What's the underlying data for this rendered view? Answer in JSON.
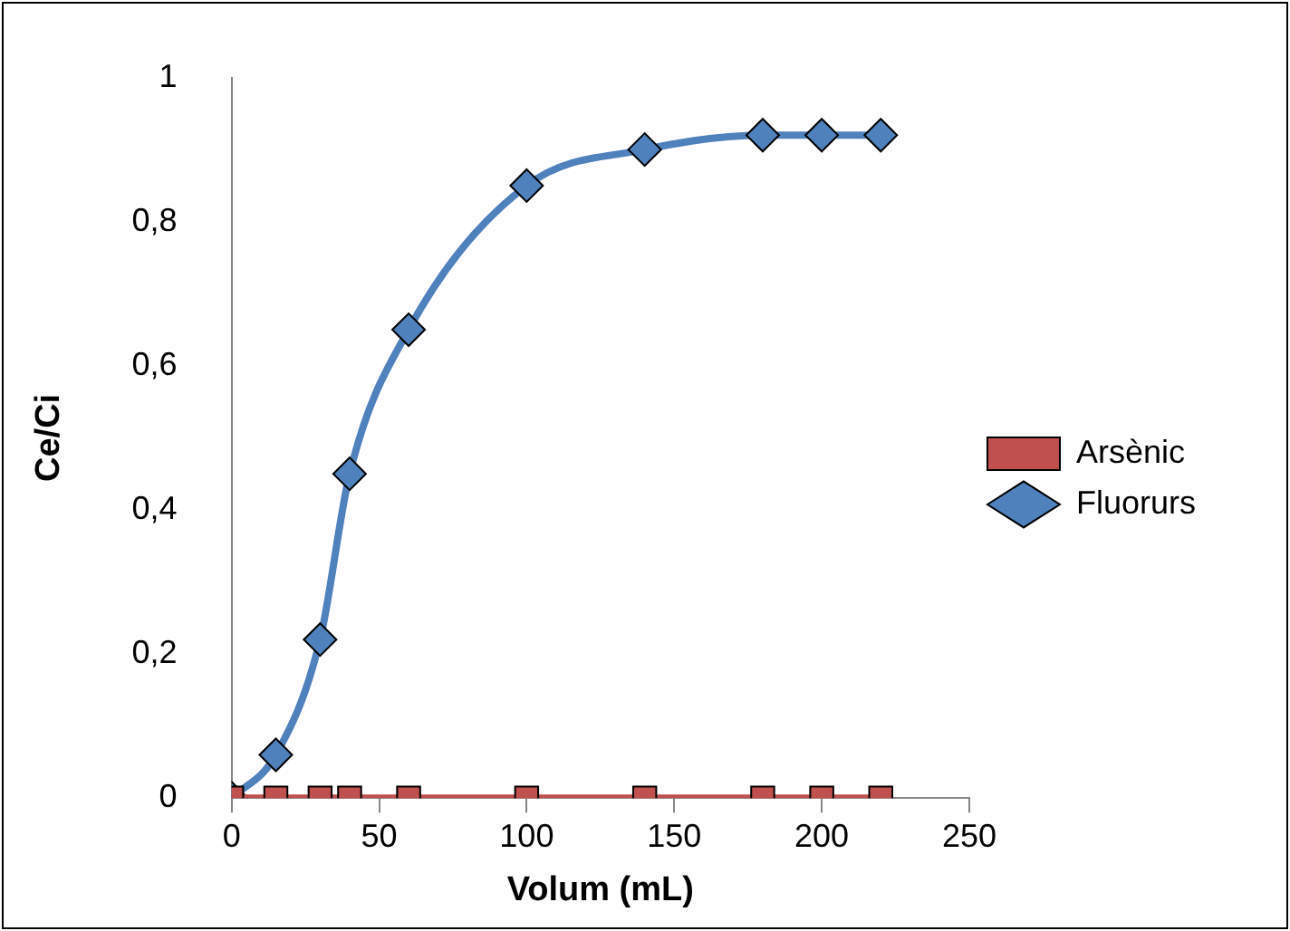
{
  "chart_data": {
    "type": "line",
    "xlabel": "Volum (mL)",
    "ylabel": "Ce/Ci",
    "xlim": [
      0,
      250
    ],
    "xticks": [
      0,
      50,
      100,
      150,
      200,
      250
    ],
    "ylim": [
      0,
      1
    ],
    "yticks": [
      0,
      {
        "value": 0.2,
        "label": "0,2"
      },
      {
        "value": 0.4,
        "label": "0,4"
      },
      {
        "value": 0.6,
        "label": "0,6"
      },
      {
        "value": 0.8,
        "label": "0,8"
      },
      1
    ],
    "grid": false,
    "legend": "right",
    "series": [
      {
        "name": "Arsènic",
        "color": "#c0504d",
        "marker": "square",
        "x": [
          0,
          15,
          30,
          40,
          60,
          100,
          140,
          180,
          200,
          220
        ],
        "values": [
          0,
          0,
          0,
          0,
          0,
          0,
          0,
          0,
          0,
          0
        ]
      },
      {
        "name": "Fluorurs",
        "color": "#4f81bd",
        "marker": "diamond",
        "x": [
          0,
          15,
          30,
          40,
          60,
          100,
          140,
          180,
          200,
          220
        ],
        "values": [
          0,
          0.06,
          0.22,
          0.45,
          0.65,
          0.85,
          0.9,
          0.92,
          0.92,
          0.92
        ]
      }
    ]
  }
}
